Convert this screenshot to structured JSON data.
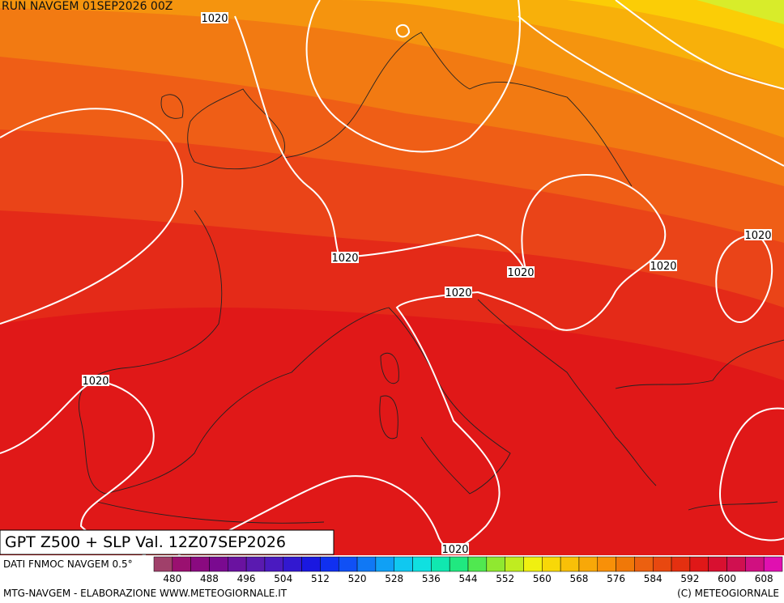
{
  "header": "RUN NAVGEM 01SEP2026 00Z",
  "title": "GPT Z500 + SLP Val. 12Z07SEP2026",
  "source": "DATI FNMOC NAVGEM 0.5°",
  "footer_left": "MTG-NAVGEM - ELABORAZIONE WWW.METEOGIORNALE.IT",
  "footer_right": "(C) METEOGIORNALE",
  "isobar_labels": [
    1020,
    1020,
    1020,
    1020,
    1020,
    1020,
    1020,
    1020
  ],
  "colorbar": {
    "lim": [
      476,
      612
    ],
    "ticks": [
      480,
      488,
      496,
      504,
      512,
      520,
      528,
      536,
      544,
      552,
      560,
      568,
      576,
      584,
      592,
      600,
      608
    ],
    "colors": [
      "#a0406a",
      "#9a1070",
      "#8a0a80",
      "#7a0a90",
      "#6a12a0",
      "#5a1ab0",
      "#4a1ac0",
      "#3218d0",
      "#1a18e0",
      "#1030f0",
      "#1050f5",
      "#1078f5",
      "#10a0f5",
      "#10c8f0",
      "#10e0e0",
      "#10e8b0",
      "#20e880",
      "#50e850",
      "#90e830",
      "#c0ec20",
      "#f0f010",
      "#f8d808",
      "#f8c008",
      "#f8a808",
      "#f89008",
      "#f07808",
      "#ec6010",
      "#e84810",
      "#e43010",
      "#e01818",
      "#d81030",
      "#d01050",
      "#d01080",
      "#e010b0"
    ]
  }
}
